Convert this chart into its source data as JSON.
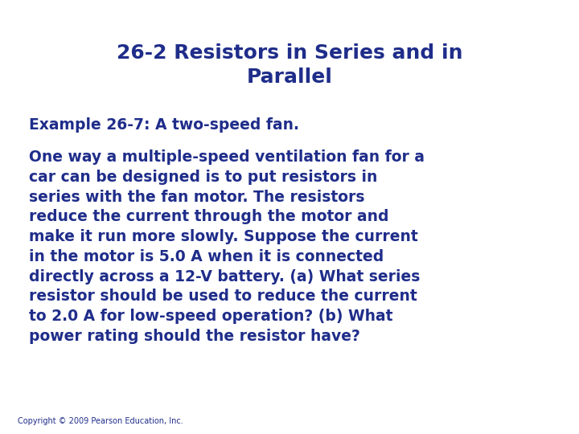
{
  "title": "26-2 Resistors in Series and in\nParallel",
  "subtitle": "Example 26-7: A two-speed fan.",
  "body": "One way a multiple-speed ventilation fan for a\ncar can be designed is to put resistors in\nseries with the fan motor. The resistors\nreduce the current through the motor and\nmake it run more slowly. Suppose the current\nin the motor is 5.0 A when it is connected\ndirectly across a 12-V battery. (a) What series\nresistor should be used to reduce the current\nto 2.0 A for low-speed operation? (b) What\npower rating should the resistor have?",
  "copyright": "Copyright © 2009 Pearson Education, Inc.",
  "bg_color": "#ffffff",
  "text_color": "#1f2d8a",
  "title_fontsize": 18,
  "subtitle_fontsize": 13.5,
  "body_fontsize": 13.5,
  "copyright_fontsize": 7
}
